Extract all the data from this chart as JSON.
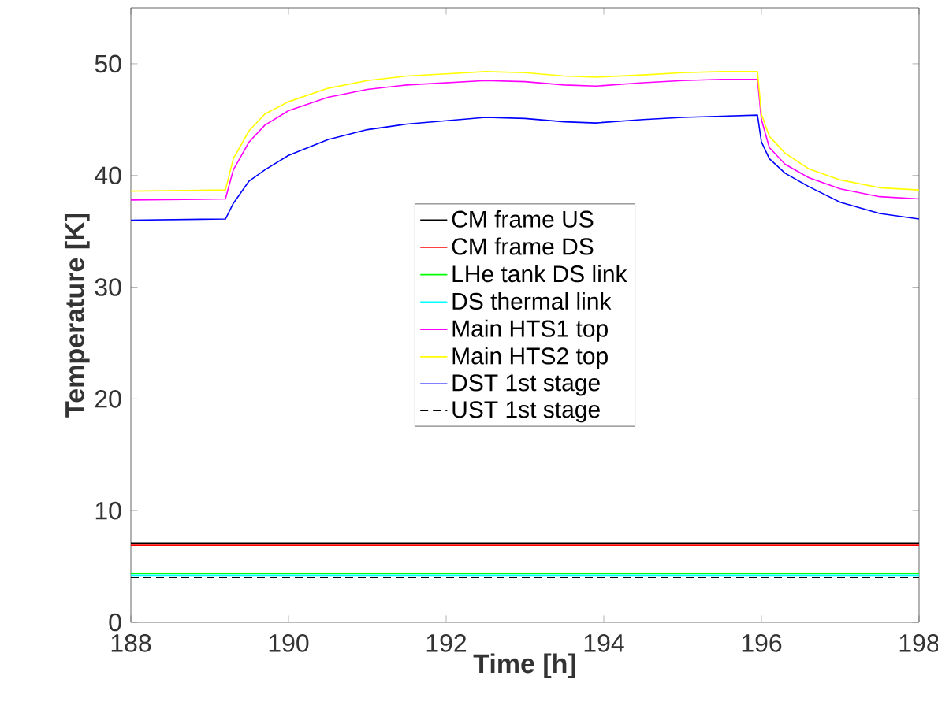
{
  "chart_data": {
    "type": "line",
    "xlabel": "Time [h]",
    "ylabel": "Temperature [K]",
    "xlim": [
      188,
      198
    ],
    "ylim": [
      0,
      55
    ],
    "xticks": [
      188,
      190,
      192,
      194,
      196,
      198
    ],
    "yticks": [
      0,
      10,
      20,
      30,
      40,
      50
    ],
    "legend": "center",
    "grid": false,
    "line_style": "solid",
    "x": [
      188,
      189.2,
      189.3,
      189.5,
      189.7,
      190,
      190.5,
      191,
      191.5,
      192,
      192.5,
      193,
      193.5,
      193.9,
      194.5,
      195,
      195.5,
      195.95,
      196,
      196.1,
      196.3,
      196.6,
      197,
      197.5,
      198
    ],
    "series": [
      {
        "name": "CM frame US",
        "color": "#000000",
        "values": [
          7.1,
          7.1,
          7.1,
          7.1,
          7.1,
          7.1,
          7.1,
          7.1,
          7.1,
          7.1,
          7.1,
          7.1,
          7.1,
          7.1,
          7.1,
          7.1,
          7.1,
          7.1,
          7.1,
          7.1,
          7.1,
          7.1,
          7.1,
          7.1,
          7.1
        ]
      },
      {
        "name": "CM frame DS",
        "color": "#ff0000",
        "values": [
          6.9,
          6.9,
          6.9,
          6.9,
          6.9,
          6.9,
          6.9,
          6.9,
          6.9,
          6.9,
          6.9,
          6.9,
          6.9,
          6.9,
          6.9,
          6.9,
          6.9,
          6.9,
          6.9,
          6.9,
          6.9,
          6.9,
          6.9,
          6.9,
          6.9
        ]
      },
      {
        "name": "LHe tank DS link",
        "color": "#00ff00",
        "values": [
          4.4,
          4.4,
          4.4,
          4.4,
          4.4,
          4.4,
          4.4,
          4.4,
          4.4,
          4.4,
          4.4,
          4.4,
          4.4,
          4.4,
          4.4,
          4.4,
          4.4,
          4.4,
          4.4,
          4.4,
          4.4,
          4.4,
          4.4,
          4.4,
          4.4
        ]
      },
      {
        "name": "DS thermal link",
        "color": "#00ffff",
        "values": [
          4.2,
          4.2,
          4.2,
          4.2,
          4.2,
          4.2,
          4.2,
          4.2,
          4.2,
          4.2,
          4.2,
          4.2,
          4.2,
          4.2,
          4.2,
          4.2,
          4.2,
          4.2,
          4.2,
          4.2,
          4.2,
          4.2,
          4.2,
          4.2,
          4.2
        ]
      },
      {
        "name": "Main HTS1 top",
        "color": "#ff00ff",
        "values": [
          37.8,
          37.9,
          40.5,
          43,
          44.5,
          45.8,
          47,
          47.7,
          48.1,
          48.3,
          48.5,
          48.4,
          48.1,
          48,
          48.3,
          48.5,
          48.6,
          48.6,
          45,
          42.5,
          41,
          39.8,
          38.8,
          38.1,
          37.9
        ]
      },
      {
        "name": "Main HTS2 top",
        "color": "#ffff00",
        "values": [
          38.6,
          38.7,
          41.5,
          44,
          45.5,
          46.6,
          47.8,
          48.5,
          48.9,
          49.1,
          49.3,
          49.2,
          48.9,
          48.8,
          49,
          49.2,
          49.3,
          49.3,
          45.5,
          43.5,
          42,
          40.6,
          39.6,
          38.9,
          38.7
        ]
      },
      {
        "name": "DST 1st stage",
        "color": "#0000ff",
        "values": [
          36,
          36.1,
          37.5,
          39.5,
          40.5,
          41.8,
          43.2,
          44.1,
          44.6,
          44.9,
          45.2,
          45.1,
          44.8,
          44.7,
          45,
          45.2,
          45.3,
          45.4,
          43,
          41.5,
          40.2,
          39,
          37.6,
          36.6,
          36.1
        ]
      },
      {
        "name": "UST 1st stage",
        "color": "#000000",
        "line_style": "dashed",
        "values": [
          4.0,
          4.0,
          4.0,
          4.0,
          4.0,
          4.0,
          4.0,
          4.0,
          4.0,
          4.0,
          4.0,
          4.0,
          4.0,
          4.0,
          4.0,
          4.0,
          4.0,
          4.0,
          4.0,
          4.0,
          4.0,
          4.0,
          4.0,
          4.0,
          4.0
        ]
      }
    ]
  }
}
